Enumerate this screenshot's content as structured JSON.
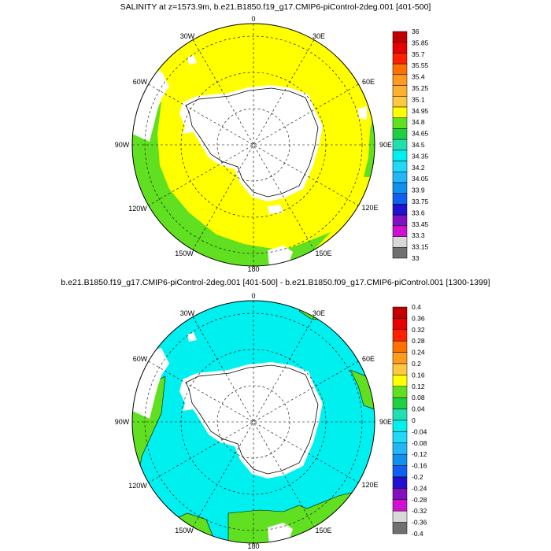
{
  "panels": [
    {
      "title": "SALINITY at z=1573.9m, b.e21.B1850.f19_g17.CMIP6-piControl-2deg.001 [401-500]",
      "lon_labels": [
        "0",
        "30E",
        "60E",
        "90E",
        "120E",
        "150E",
        "180",
        "150W",
        "120W",
        "90W",
        "60W",
        "30W"
      ],
      "colorbar": {
        "labels": [
          "36",
          "35.85",
          "35.7",
          "35.55",
          "35.4",
          "35.25",
          "35.1",
          "34.95",
          "34.8",
          "34.65",
          "34.5",
          "34.35",
          "34.2",
          "34.05",
          "33.9",
          "33.75",
          "33.6",
          "33.45",
          "33.3",
          "33.15",
          "33"
        ],
        "colors": [
          "#c00000",
          "#e80000",
          "#ff2000",
          "#ff7000",
          "#ff9a20",
          "#ffb030",
          "#ffc840",
          "#ffff00",
          "#60e020",
          "#20d040",
          "#20e0b0",
          "#00f0f0",
          "#20d8f8",
          "#20b8f8",
          "#1090f0",
          "#1060f0",
          "#2010d0",
          "#8010c0",
          "#d010d0",
          "#d8d8d8",
          "#707070"
        ]
      }
    },
    {
      "title": "b.e21.B1850.f19_g17.CMIP6-piControl-2deg.001 [401-500] - b.e21.B1850.f09_g17.CMIP6-piControl.001 [1300-1399]",
      "lon_labels": [
        "0",
        "30E",
        "60E",
        "90E",
        "120E",
        "150E",
        "180",
        "150W",
        "120W",
        "90W",
        "60W",
        "30W"
      ],
      "colorbar": {
        "labels": [
          "0.4",
          "0.36",
          "0.32",
          "0.28",
          "0.24",
          "0.2",
          "0.16",
          "0.12",
          "0.08",
          "0.04",
          "0",
          "-0.04",
          "-0.08",
          "-0.12",
          "-0.16",
          "-0.2",
          "-0.24",
          "-0.28",
          "-0.32",
          "-0.36",
          "-0.4"
        ],
        "colors": [
          "#c00000",
          "#e80000",
          "#ff2000",
          "#ff7000",
          "#ff9a20",
          "#ffc840",
          "#ffff00",
          "#60e020",
          "#20d040",
          "#20e0b0",
          "#00f0f0",
          "#20d8f8",
          "#20b8f8",
          "#1090f0",
          "#1060f0",
          "#2010d0",
          "#8010c0",
          "#d010d0",
          "#d8d8d8",
          "#707070"
        ]
      }
    }
  ],
  "colors": {
    "top_ocean": "#ffff00",
    "top_margin": "#60e020",
    "bottom_ocean": "#00f0f0",
    "bottom_anomaly": "#60e020",
    "land": "#ffffff",
    "outline": "#000000"
  }
}
